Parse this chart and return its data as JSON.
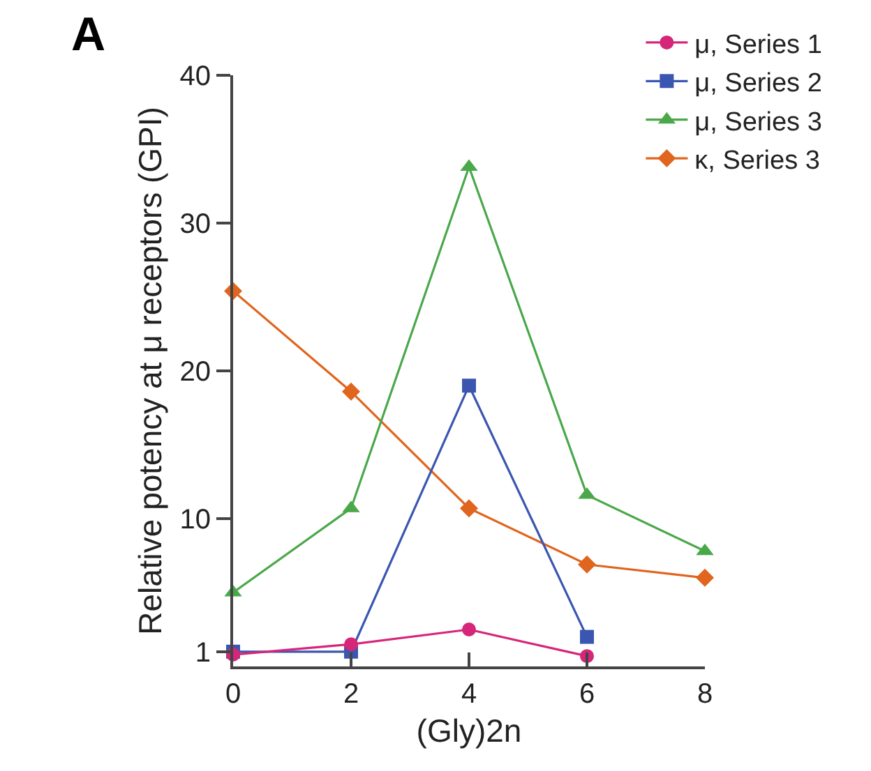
{
  "chart_data": {
    "type": "line",
    "xlabel": "(Gly)2n",
    "ylabel": "Relative potency at μ receptors (GPI)",
    "annotations": [
      "A"
    ],
    "x": [
      0,
      2,
      4,
      6,
      8
    ],
    "series": [
      {
        "name": "μ, Series 1",
        "color": "#d6267a",
        "marker": "circle",
        "x": [
          0,
          2,
          4,
          6
        ],
        "values": [
          0.8,
          1.5,
          2.5,
          0.7
        ]
      },
      {
        "name": "μ, Series 2",
        "color": "#3a56b0",
        "marker": "square",
        "x": [
          0,
          2,
          4,
          6
        ],
        "values": [
          1,
          1,
          19,
          2
        ]
      },
      {
        "name": "μ, Series 3",
        "color": "#4aa84a",
        "marker": "triangle",
        "values": [
          5,
          10.7,
          33.8,
          11.6,
          7.8
        ]
      },
      {
        "name": "κ, Series 3",
        "color": "#e0651e",
        "marker": "diamond",
        "values": [
          25.4,
          18.6,
          10.7,
          6.9,
          6.0
        ]
      }
    ],
    "xlim": [
      0,
      8
    ],
    "xticks": [
      0,
      2,
      4,
      6,
      8
    ],
    "ylim": [
      0,
      40
    ],
    "yticks": [
      1,
      10,
      20,
      30,
      40
    ],
    "grid": false,
    "legend": "top right"
  }
}
